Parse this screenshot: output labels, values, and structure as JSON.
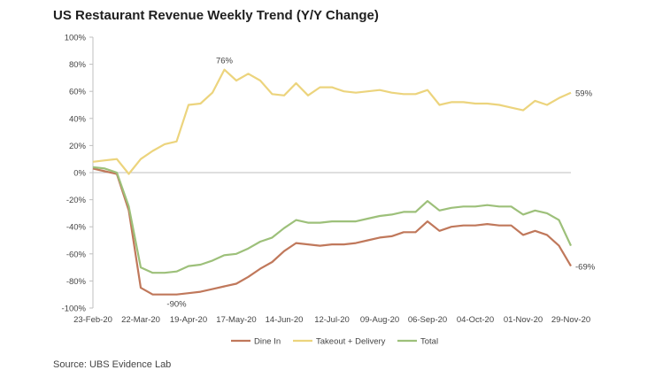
{
  "title": "US Restaurant Revenue Weekly Trend (Y/Y Change)",
  "source": "Source: UBS Evidence Lab",
  "chart_data": {
    "type": "line",
    "x": [
      "23-Feb-20",
      "01-Mar-20",
      "08-Mar-20",
      "15-Mar-20",
      "22-Mar-20",
      "29-Mar-20",
      "05-Apr-20",
      "12-Apr-20",
      "19-Apr-20",
      "26-Apr-20",
      "03-May-20",
      "10-May-20",
      "17-May-20",
      "24-May-20",
      "31-May-20",
      "07-Jun-20",
      "14-Jun-20",
      "21-Jun-20",
      "28-Jun-20",
      "05-Jul-20",
      "12-Jul-20",
      "19-Jul-20",
      "26-Jul-20",
      "02-Aug-20",
      "09-Aug-20",
      "16-Aug-20",
      "23-Aug-20",
      "30-Aug-20",
      "06-Sep-20",
      "13-Sep-20",
      "20-Sep-20",
      "27-Sep-20",
      "04-Oct-20",
      "11-Oct-20",
      "18-Oct-20",
      "25-Oct-20",
      "01-Nov-20",
      "08-Nov-20",
      "15-Nov-20",
      "22-Nov-20",
      "29-Nov-20"
    ],
    "x_tick_labels": [
      "23-Feb-20",
      "22-Mar-20",
      "19-Apr-20",
      "17-May-20",
      "14-Jun-20",
      "12-Jul-20",
      "09-Aug-20",
      "06-Sep-20",
      "04-Oct-20",
      "01-Nov-20",
      "29-Nov-20"
    ],
    "y_tick_labels": [
      "100%",
      "80%",
      "60%",
      "40%",
      "20%",
      "0%",
      "-20%",
      "-40%",
      "-60%",
      "-80%",
      "-100%"
    ],
    "ylim": [
      -100,
      100
    ],
    "grid": false,
    "legend_position": "bottom",
    "series": [
      {
        "name": "Dine In",
        "color": "#c0785b",
        "values": [
          3,
          1,
          -1,
          -28,
          -85,
          -90,
          -90,
          -90,
          -89,
          -88,
          -86,
          -84,
          -82,
          -77,
          -71,
          -66,
          -58,
          -52,
          -53,
          -54,
          -53,
          -53,
          -52,
          -50,
          -48,
          -47,
          -44,
          -44,
          -36,
          -43,
          -40,
          -39,
          -39,
          -38,
          -39,
          -39,
          -46,
          -43,
          -46,
          -54,
          -69
        ]
      },
      {
        "name": "Takeout + Delivery",
        "color": "#ecd47d",
        "values": [
          8,
          9,
          10,
          -1,
          10,
          16,
          21,
          23,
          50,
          51,
          59,
          76,
          68,
          73,
          68,
          58,
          57,
          66,
          57,
          63,
          63,
          60,
          59,
          60,
          61,
          59,
          58,
          58,
          61,
          50,
          52,
          52,
          51,
          51,
          50,
          48,
          46,
          53,
          50,
          55,
          59
        ]
      },
      {
        "name": "Total",
        "color": "#9dc07a",
        "values": [
          4,
          3,
          0,
          -25,
          -70,
          -74,
          -74,
          -73,
          -69,
          -68,
          -65,
          -61,
          -60,
          -56,
          -51,
          -48,
          -41,
          -35,
          -37,
          -37,
          -36,
          -36,
          -36,
          -34,
          -32,
          -31,
          -29,
          -29,
          -21,
          -28,
          -26,
          -25,
          -25,
          -24,
          -25,
          -25,
          -31,
          -28,
          -30,
          -35,
          -54
        ]
      }
    ],
    "annotations": [
      {
        "text": "76%",
        "series": 1,
        "index": 11,
        "position": "above"
      },
      {
        "text": "59%",
        "series": 1,
        "index": 40,
        "position": "right"
      },
      {
        "text": "-90%",
        "series": 0,
        "index": 7,
        "position": "below"
      },
      {
        "text": "-69%",
        "series": 0,
        "index": 40,
        "position": "right"
      }
    ]
  }
}
